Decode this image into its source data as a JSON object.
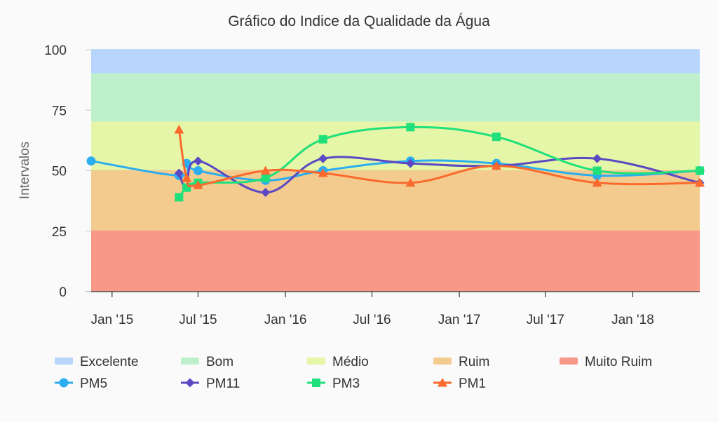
{
  "chart_data": {
    "type": "line",
    "title": "Gráfico do Indice da Qualidade da Água",
    "ylabel": "Intervalos",
    "ylim": [
      0,
      100
    ],
    "yticks": [
      0,
      25,
      50,
      75,
      100
    ],
    "xlim": [
      "2014-11-18",
      "2018-05-22"
    ],
    "xticks": [
      {
        "date": "2015-01-01",
        "label": "Jan '15"
      },
      {
        "date": "2015-07-01",
        "label": "Jul '15"
      },
      {
        "date": "2016-01-01",
        "label": "Jan '16"
      },
      {
        "date": "2016-07-01",
        "label": "Jul '16"
      },
      {
        "date": "2017-01-01",
        "label": "Jan '17"
      },
      {
        "date": "2017-07-01",
        "label": "Jul '17"
      },
      {
        "date": "2018-01-01",
        "label": "Jan '18"
      }
    ],
    "bands": [
      {
        "name": "Excelente",
        "from": 90,
        "to": 100,
        "color": "#b8d6fb"
      },
      {
        "name": "Bom",
        "from": 70,
        "to": 90,
        "color": "#bef0cb"
      },
      {
        "name": "Médio",
        "from": 50,
        "to": 70,
        "color": "#e6f6a8"
      },
      {
        "name": "Ruim",
        "from": 25,
        "to": 50,
        "color": "#f3cb8f"
      },
      {
        "name": "Muito Ruim",
        "from": 0,
        "to": 25,
        "color": "#f89888"
      }
    ],
    "series": [
      {
        "name": "PM5",
        "color": "#2baeef",
        "marker": "circle",
        "points": [
          {
            "x": "2014-11-18",
            "y": 54
          },
          {
            "x": "2015-05-22",
            "y": 48
          },
          {
            "x": "2015-06-07",
            "y": 53
          },
          {
            "x": "2015-07-01",
            "y": 50
          },
          {
            "x": "2015-11-20",
            "y": 46
          },
          {
            "x": "2016-03-20",
            "y": 50
          },
          {
            "x": "2016-09-20",
            "y": 54
          },
          {
            "x": "2017-03-20",
            "y": 53
          },
          {
            "x": "2017-10-18",
            "y": 48
          },
          {
            "x": "2018-05-22",
            "y": 50
          }
        ]
      },
      {
        "name": "PM11",
        "color": "#5a49c2",
        "marker": "diamond",
        "points": [
          {
            "x": "2015-05-22",
            "y": 49
          },
          {
            "x": "2015-06-07",
            "y": 43
          },
          {
            "x": "2015-07-01",
            "y": 54
          },
          {
            "x": "2015-11-20",
            "y": 41
          },
          {
            "x": "2016-03-20",
            "y": 55
          },
          {
            "x": "2016-09-20",
            "y": 53
          },
          {
            "x": "2017-03-20",
            "y": 52
          },
          {
            "x": "2017-10-18",
            "y": 55
          },
          {
            "x": "2018-05-22",
            "y": 45
          }
        ]
      },
      {
        "name": "PM3",
        "color": "#1fe07a",
        "marker": "square",
        "points": [
          {
            "x": "2015-05-22",
            "y": 39
          },
          {
            "x": "2015-06-07",
            "y": 43
          },
          {
            "x": "2015-07-01",
            "y": 45
          },
          {
            "x": "2015-11-20",
            "y": 47
          },
          {
            "x": "2016-03-20",
            "y": 63
          },
          {
            "x": "2016-09-20",
            "y": 68
          },
          {
            "x": "2017-03-20",
            "y": 64
          },
          {
            "x": "2017-10-18",
            "y": 50
          },
          {
            "x": "2018-05-22",
            "y": 50
          }
        ]
      },
      {
        "name": "PM1",
        "color": "#fb6a2c",
        "marker": "triangle",
        "points": [
          {
            "x": "2015-05-22",
            "y": 67
          },
          {
            "x": "2015-06-07",
            "y": 47
          },
          {
            "x": "2015-07-01",
            "y": 44
          },
          {
            "x": "2015-11-20",
            "y": 50
          },
          {
            "x": "2016-03-20",
            "y": 49
          },
          {
            "x": "2016-09-20",
            "y": 45
          },
          {
            "x": "2017-03-20",
            "y": 52
          },
          {
            "x": "2017-10-18",
            "y": 45
          },
          {
            "x": "2018-05-22",
            "y": 45
          }
        ]
      }
    ],
    "grid": false,
    "legend_position": "bottom"
  }
}
